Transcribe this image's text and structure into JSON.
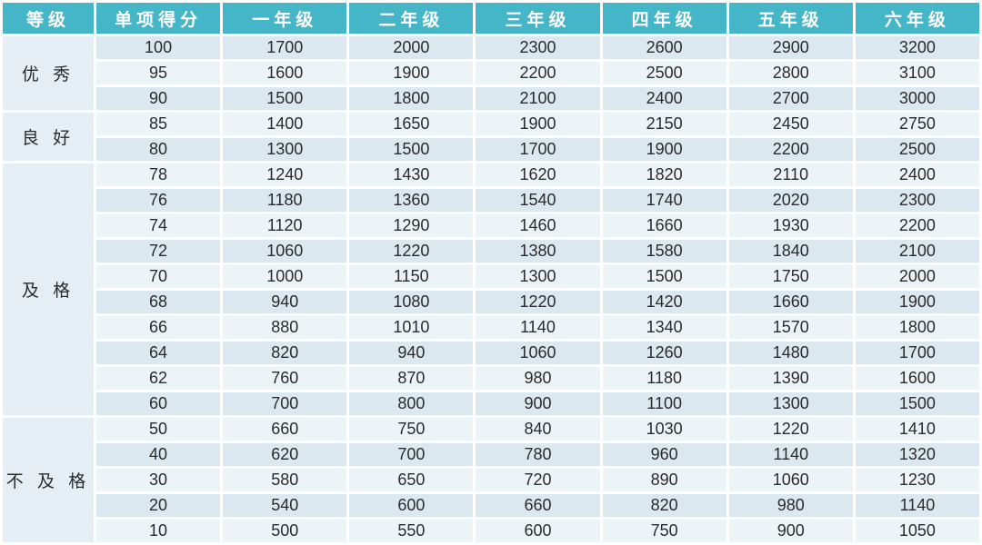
{
  "colors": {
    "header_bg": "#44b6c8",
    "header_text": "#ffffff",
    "row_dark": "#dbe8f0",
    "row_light": "#edf4f8",
    "group_bg": "#e4eef4",
    "cell_text": "#2b2b2b"
  },
  "chart_data": {
    "type": "table",
    "columns": [
      "等级",
      "单项得分",
      "一年级",
      "二年级",
      "三年级",
      "四年级",
      "五年级",
      "六年级"
    ],
    "groups": [
      {
        "label": "优 秀",
        "rows": [
          {
            "score": 100,
            "values": [
              1700,
              2000,
              2300,
              2600,
              2900,
              3200
            ]
          },
          {
            "score": 95,
            "values": [
              1600,
              1900,
              2200,
              2500,
              2800,
              3100
            ]
          },
          {
            "score": 90,
            "values": [
              1500,
              1800,
              2100,
              2400,
              2700,
              3000
            ]
          }
        ]
      },
      {
        "label": "良 好",
        "rows": [
          {
            "score": 85,
            "values": [
              1400,
              1650,
              1900,
              2150,
              2450,
              2750
            ]
          },
          {
            "score": 80,
            "values": [
              1300,
              1500,
              1700,
              1900,
              2200,
              2500
            ]
          }
        ]
      },
      {
        "label": "及 格",
        "rows": [
          {
            "score": 78,
            "values": [
              1240,
              1430,
              1620,
              1820,
              2110,
              2400
            ]
          },
          {
            "score": 76,
            "values": [
              1180,
              1360,
              1540,
              1740,
              2020,
              2300
            ]
          },
          {
            "score": 74,
            "values": [
              1120,
              1290,
              1460,
              1660,
              1930,
              2200
            ]
          },
          {
            "score": 72,
            "values": [
              1060,
              1220,
              1380,
              1580,
              1840,
              2100
            ]
          },
          {
            "score": 70,
            "values": [
              1000,
              1150,
              1300,
              1500,
              1750,
              2000
            ]
          },
          {
            "score": 68,
            "values": [
              940,
              1080,
              1220,
              1420,
              1660,
              1900
            ]
          },
          {
            "score": 66,
            "values": [
              880,
              1010,
              1140,
              1340,
              1570,
              1800
            ]
          },
          {
            "score": 64,
            "values": [
              820,
              940,
              1060,
              1260,
              1480,
              1700
            ]
          },
          {
            "score": 62,
            "values": [
              760,
              870,
              980,
              1180,
              1390,
              1600
            ]
          },
          {
            "score": 60,
            "values": [
              700,
              800,
              900,
              1100,
              1300,
              1500
            ]
          }
        ]
      },
      {
        "label": "不 及 格",
        "rows": [
          {
            "score": 50,
            "values": [
              660,
              750,
              840,
              1030,
              1220,
              1410
            ]
          },
          {
            "score": 40,
            "values": [
              620,
              700,
              780,
              960,
              1140,
              1320
            ]
          },
          {
            "score": 30,
            "values": [
              580,
              650,
              720,
              890,
              1060,
              1230
            ]
          },
          {
            "score": 20,
            "values": [
              540,
              600,
              660,
              820,
              980,
              1140
            ]
          },
          {
            "score": 10,
            "values": [
              500,
              550,
              600,
              750,
              900,
              1050
            ]
          }
        ]
      }
    ]
  }
}
